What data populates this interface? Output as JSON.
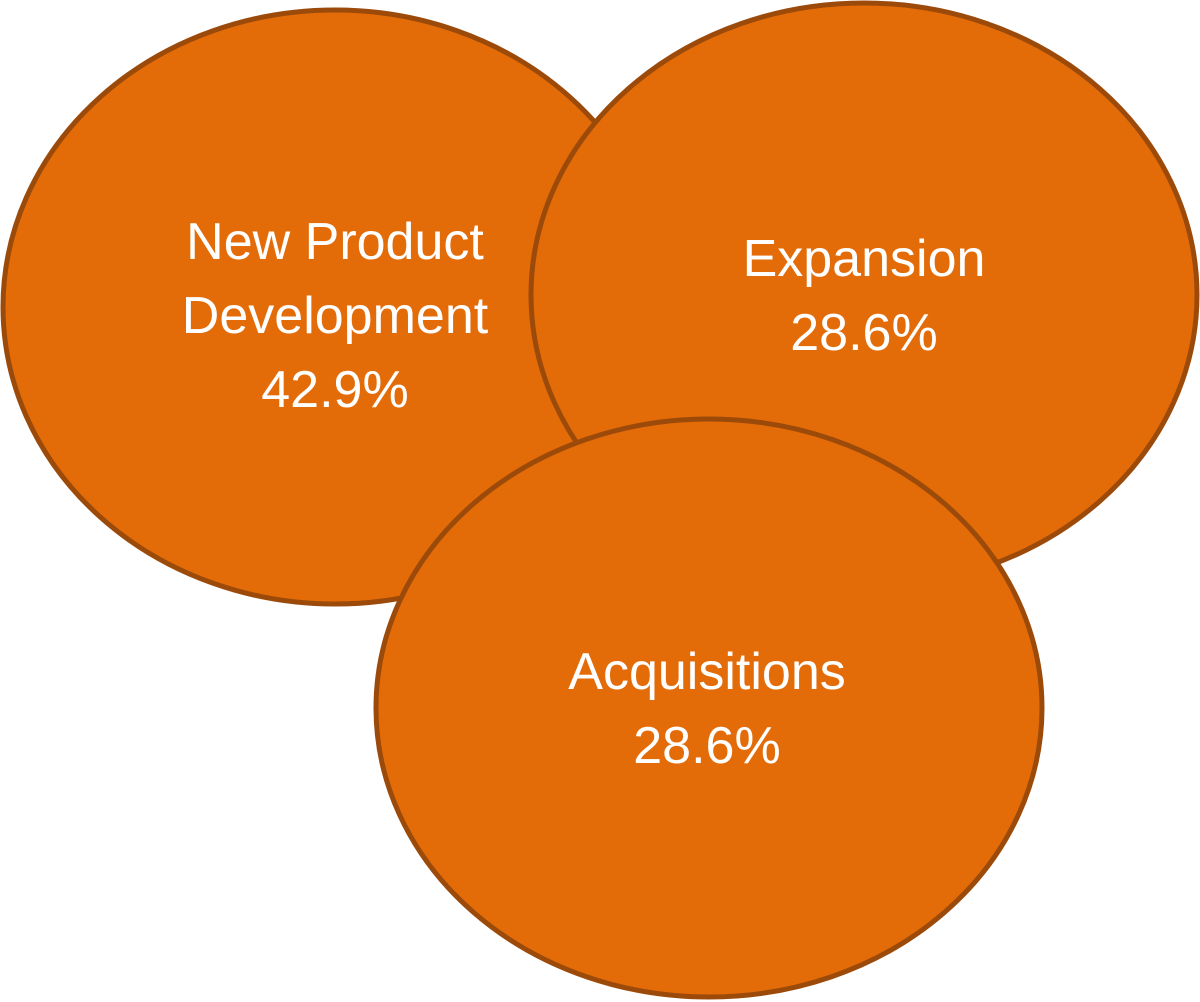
{
  "nodes": [
    {
      "label": "New Product Development",
      "value": "42.9%"
    },
    {
      "label": "Expansion",
      "value": "28.6%"
    },
    {
      "label": "Acquisitions",
      "value": "28.6%"
    }
  ]
}
